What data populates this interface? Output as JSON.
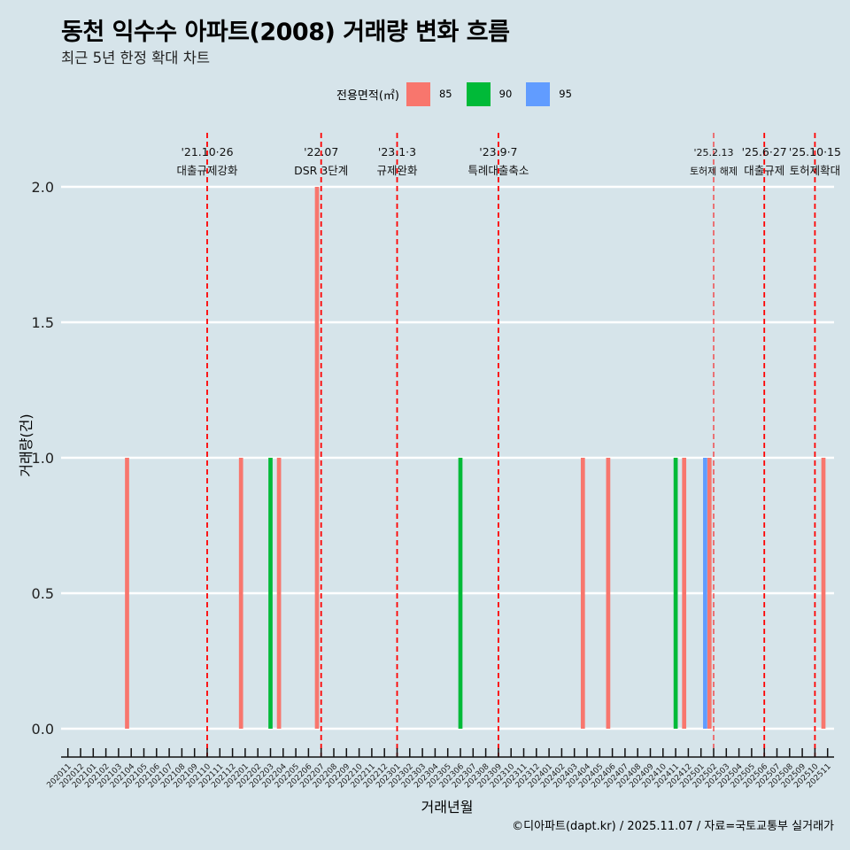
{
  "header": {
    "title": "동천 익수수 아파트(2008) 거래량 변화 흐름",
    "subtitle": "최근 5년 한정 확대 차트"
  },
  "legend": {
    "title": "전용면적(㎡)",
    "items": [
      {
        "label": "85",
        "color": "#F8766D"
      },
      {
        "label": "90",
        "color": "#00BA38"
      },
      {
        "label": "95",
        "color": "#619CFF"
      }
    ]
  },
  "caption": "©디아파트(dapt.kr) / 2025.11.07 / 자료=국토교통부 실거래가",
  "chart_data": {
    "type": "bar",
    "title": "동천 익수수 아파트(2008) 거래량 변화 흐름",
    "subtitle": "최근 5년 한정 확대 차트",
    "xlabel": "거래년월",
    "ylabel": "거래량(건)",
    "ylim": [
      0,
      2
    ],
    "yticks": [
      "0.0",
      "0.5",
      "1.0",
      "1.5",
      "2.0"
    ],
    "grid": true,
    "legend_position": "top",
    "categories": [
      "202011",
      "202012",
      "202101",
      "202102",
      "202103",
      "202104",
      "202105",
      "202106",
      "202107",
      "202108",
      "202109",
      "202110",
      "202111",
      "202112",
      "202201",
      "202202",
      "202203",
      "202204",
      "202205",
      "202206",
      "202207",
      "202208",
      "202209",
      "202210",
      "202211",
      "202212",
      "202301",
      "202302",
      "202303",
      "202304",
      "202305",
      "202306",
      "202307",
      "202308",
      "202309",
      "202310",
      "202311",
      "202312",
      "202401",
      "202402",
      "202403",
      "202404",
      "202405",
      "202406",
      "202407",
      "202408",
      "202409",
      "202410",
      "202411",
      "202412",
      "202501",
      "202502",
      "202503",
      "202504",
      "202505",
      "202506",
      "202507",
      "202508",
      "202509",
      "202510",
      "202511"
    ],
    "series": [
      {
        "name": "85",
        "color": "#F8766D",
        "points": [
          {
            "x": "202104",
            "y": 1
          },
          {
            "x": "202201",
            "y": 1
          },
          {
            "x": "202204",
            "y": 1
          },
          {
            "x": "202207",
            "y": 2
          },
          {
            "x": "202404",
            "y": 1
          },
          {
            "x": "202406",
            "y": 1
          },
          {
            "x": "202412",
            "y": 1
          },
          {
            "x": "202502",
            "y": 1
          },
          {
            "x": "202511",
            "y": 1
          }
        ]
      },
      {
        "name": "90",
        "color": "#00BA38",
        "points": [
          {
            "x": "202203",
            "y": 1
          },
          {
            "x": "202306",
            "y": 1
          },
          {
            "x": "202411",
            "y": 1
          }
        ]
      },
      {
        "name": "95",
        "color": "#619CFF",
        "points": [
          {
            "x": "202501",
            "y": 1
          }
        ]
      }
    ],
    "annotations": [
      {
        "x": "202110",
        "date": "'21.10·26",
        "label": "대출규제강화",
        "thin": false
      },
      {
        "x": "202207",
        "date": "'22.07",
        "label": "DSR 3단계",
        "thin": false
      },
      {
        "x": "202301",
        "date": "'23.1·3",
        "label": "규제완화",
        "thin": false
      },
      {
        "x": "202309",
        "date": "'23.9·7",
        "label": "특례대출축소",
        "thin": false
      },
      {
        "x": "202502",
        "date": "'25.2.13",
        "label": "토허제 해제",
        "thin": true
      },
      {
        "x": "202506",
        "date": "'25.6·27",
        "label": "대출규제",
        "thin": false
      },
      {
        "x": "202510",
        "date": "'25.10·15",
        "label": "토허제확대",
        "thin": false
      }
    ]
  }
}
